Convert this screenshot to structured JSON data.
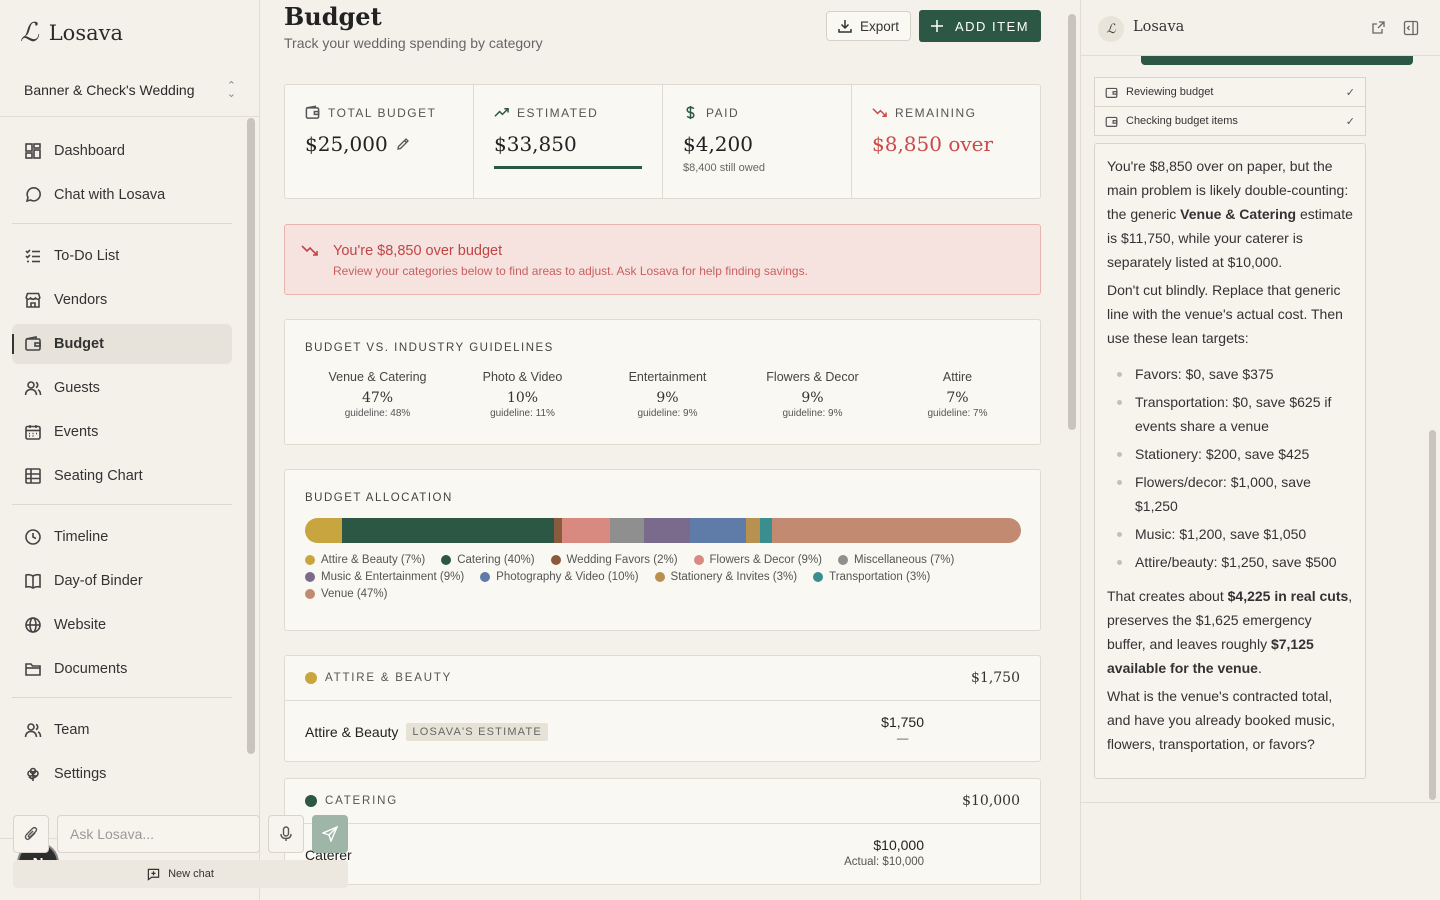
{
  "sidebar": {
    "brand": "Losava",
    "wedding": "Banner & Check's Wedding",
    "nav": [
      {
        "label": "Dashboard",
        "icon": "dashboard-icon"
      },
      {
        "label": "Chat with Losava",
        "icon": "chat-icon"
      },
      {
        "label": "To-Do List",
        "icon": "todo-icon"
      },
      {
        "label": "Vendors",
        "icon": "store-icon"
      },
      {
        "label": "Budget",
        "icon": "wallet-icon",
        "active": true
      },
      {
        "label": "Guests",
        "icon": "users-icon"
      },
      {
        "label": "Events",
        "icon": "calendar-icon"
      },
      {
        "label": "Seating Chart",
        "icon": "grid-icon"
      },
      {
        "label": "Timeline",
        "icon": "clock-icon"
      },
      {
        "label": "Day-of Binder",
        "icon": "book-icon"
      },
      {
        "label": "Website",
        "icon": "globe-icon"
      },
      {
        "label": "Documents",
        "icon": "folder-icon"
      },
      {
        "label": "Team",
        "icon": "team-icon"
      },
      {
        "label": "Settings",
        "icon": "flower-icon"
      }
    ],
    "avatar_initial": "N",
    "collapse_glyph": "‹"
  },
  "header": {
    "title": "Budget",
    "subtitle": "Track your wedding spending by category",
    "export_label": "Export",
    "add_label": "ADD ITEM"
  },
  "stats": {
    "total_label": "TOTAL BUDGET",
    "total_value": "$25,000",
    "estimated_label": "ESTIMATED",
    "estimated_value": "$33,850",
    "paid_label": "PAID",
    "paid_value": "$4,200",
    "paid_note": "$8,400 still owed",
    "remaining_label": "REMAINING",
    "remaining_value": "$8,850 over"
  },
  "alert": {
    "title": "You're $8,850 over budget",
    "text": "Review your categories below to find areas to adjust. Ask Losava for help finding savings."
  },
  "guidelines": {
    "title": "BUDGET VS. INDUSTRY GUIDELINES",
    "items": [
      {
        "name": "Venue & Catering",
        "pct": "47%",
        "guide": "guideline: 48%"
      },
      {
        "name": "Photo & Video",
        "pct": "10%",
        "guide": "guideline: 11%"
      },
      {
        "name": "Entertainment",
        "pct": "9%",
        "guide": "guideline: 9%"
      },
      {
        "name": "Flowers & Decor",
        "pct": "9%",
        "guide": "guideline: 9%"
      },
      {
        "name": "Attire",
        "pct": "7%",
        "guide": "guideline: 7%"
      }
    ]
  },
  "allocation": {
    "title": "BUDGET ALLOCATION",
    "segments": [
      {
        "label": "Attire & Beauty (7%)",
        "pct": 5.2,
        "color": "#c9a53f"
      },
      {
        "label": "Catering (40%)",
        "pct": 29.6,
        "color": "#2c5744"
      },
      {
        "label": "Wedding Favors (2%)",
        "pct": 1.1,
        "color": "#8a5a3c"
      },
      {
        "label": "Flowers & Decor (9%)",
        "pct": 6.7,
        "color": "#d98a80"
      },
      {
        "label": "Miscellaneous (7%)",
        "pct": 4.8,
        "color": "#8f8f8f"
      },
      {
        "label": "Music & Entertainment (9%)",
        "pct": 6.4,
        "color": "#7a6a8c"
      },
      {
        "label": "Photography & Video (10%)",
        "pct": 7.8,
        "color": "#5f7ba8"
      },
      {
        "label": "Stationery & Invites (3%)",
        "pct": 2.0,
        "color": "#b8904f"
      },
      {
        "label": "Transportation (3%)",
        "pct": 1.7,
        "color": "#3b8e8f"
      },
      {
        "label": "Venue (47%)",
        "pct": 34.7,
        "color": "#c28a70"
      }
    ]
  },
  "categories": [
    {
      "name": "ATTIRE & BEAUTY",
      "color": "#c9a53f",
      "total": "$1,750",
      "row": {
        "name": "Attire & Beauty",
        "badge": "LOSAVA'S ESTIMATE",
        "amount": "$1,750",
        "sub": "—"
      }
    },
    {
      "name": "CATERING",
      "color": "#2c5744",
      "total": "$10,000",
      "row": {
        "name": "Caterer",
        "badge": "",
        "amount": "$10,000",
        "sub": "Actual: $10,000"
      }
    }
  ],
  "chat": {
    "title": "Losava",
    "tools": [
      {
        "label": "Reviewing budget"
      },
      {
        "label": "Checking budget items"
      }
    ],
    "p1_a": "You're $8,850 over on paper, but the main problem is likely double-counting: the generic ",
    "p1_b": "Venue & Catering",
    "p1_c": " estimate is $11,750, while your caterer is separately listed at $10,000.",
    "p2": "Don't cut blindly. Replace that generic line with the venue's actual cost. Then use these lean targets:",
    "list": [
      "Favors: $0, save $375",
      "Transportation: $0, save $625 if events share a venue",
      "Stationery: $200, save $425",
      "Flowers/decor: $1,000, save $1,250",
      "Music: $1,200, save $1,050",
      "Attire/beauty: $1,250, save $500"
    ],
    "p3_a": "That creates about ",
    "p3_b": "$4,225 in real cuts",
    "p3_c": ", preserves the $1,625 emergency buffer, and leaves roughly ",
    "p3_d": "$7,125 available for the venue",
    "p3_e": ".",
    "p4": "What is the venue's contracted total, and have you already booked music, flowers, transportation, or favors?",
    "input_placeholder": "Ask Losava...",
    "new_chat": "New chat"
  }
}
